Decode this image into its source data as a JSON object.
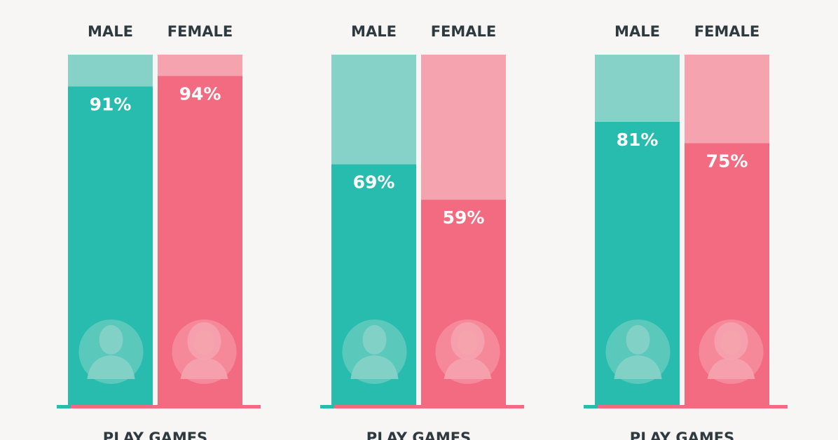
{
  "chart_data": [
    {
      "type": "bar",
      "stacked_to": 100,
      "categories": [
        "MALE",
        "FEMALE"
      ],
      "values": [
        91,
        94
      ],
      "value_labels": [
        "91%",
        "94%"
      ],
      "xlabel": "PLAY GAMES",
      "ylim": [
        0,
        100
      ]
    },
    {
      "type": "bar",
      "stacked_to": 100,
      "categories": [
        "MALE",
        "FEMALE"
      ],
      "values": [
        69,
        59
      ],
      "value_labels": [
        "69%",
        "59%"
      ],
      "xlabel": "PLAY GAMES",
      "ylim": [
        0,
        100
      ]
    },
    {
      "type": "bar",
      "stacked_to": 100,
      "categories": [
        "MALE",
        "FEMALE"
      ],
      "values": [
        81,
        75
      ],
      "value_labels": [
        "81%",
        "75%"
      ],
      "xlabel": "PLAY GAMES",
      "ylim": [
        0,
        100
      ]
    }
  ],
  "colors": {
    "male": "#27bcae",
    "male_light": "#86d2c8",
    "female": "#f36b80",
    "female_light": "#f5a3ae",
    "baseline": "#f36b80",
    "baseline_male": "#27bcae",
    "text": "#2e3a3f",
    "background": "#f7f6f5"
  },
  "icons": {
    "male": "male-person-icon",
    "female": "female-person-icon"
  }
}
